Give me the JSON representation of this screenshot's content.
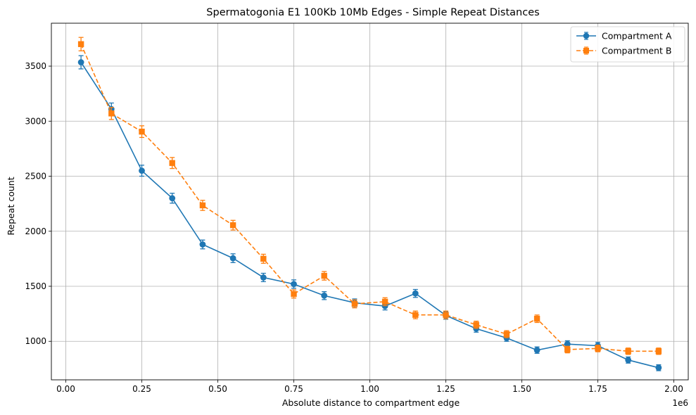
{
  "chart_data": {
    "type": "line",
    "title": "Spermatogonia E1 100Kb 10Mb Edges - Simple Repeat Distances",
    "xlabel": "Absolute distance to compartment edge",
    "ylabel": "Repeat count",
    "x_offset_label": "1e6",
    "xlim": [
      -0.0475,
      2.0475
    ],
    "ylim": [
      650,
      3890
    ],
    "x_ticks": [
      0.0,
      0.25,
      0.5,
      0.75,
      1.0,
      1.25,
      1.5,
      1.75,
      2.0
    ],
    "x_tick_labels": [
      "0.00",
      "0.25",
      "0.50",
      "0.75",
      "1.00",
      "1.25",
      "1.50",
      "1.75",
      "2.00"
    ],
    "y_ticks": [
      1000,
      1500,
      2000,
      2500,
      3000,
      3500
    ],
    "y_tick_labels": [
      "1000",
      "1500",
      "2000",
      "2500",
      "3000",
      "3500"
    ],
    "grid": true,
    "legend_position": "top-right",
    "x": [
      0.05,
      0.15,
      0.25,
      0.35,
      0.45,
      0.55,
      0.65,
      0.75,
      0.85,
      0.95,
      1.05,
      1.15,
      1.25,
      1.35,
      1.45,
      1.55,
      1.65,
      1.75,
      1.85,
      1.95
    ],
    "series": [
      {
        "name": "Compartment A",
        "color": "#1f77b4",
        "line_style": "solid",
        "marker": "circle",
        "values": [
          3535,
          3110,
          2550,
          2300,
          1880,
          1755,
          1580,
          1520,
          1415,
          1350,
          1320,
          1435,
          1235,
          1115,
          1030,
          920,
          975,
          960,
          830,
          760
        ],
        "errors": [
          60,
          55,
          50,
          45,
          40,
          40,
          38,
          38,
          36,
          35,
          35,
          36,
          34,
          32,
          30,
          29,
          30,
          30,
          28,
          27
        ]
      },
      {
        "name": "Compartment B",
        "color": "#ff7f0e",
        "line_style": "dashed",
        "marker": "square",
        "values": [
          3700,
          3070,
          2905,
          2620,
          2235,
          2055,
          1750,
          1430,
          1595,
          1340,
          1360,
          1240,
          1240,
          1150,
          1065,
          1205,
          925,
          935,
          910,
          910
        ],
        "errors": [
          61,
          55,
          53,
          50,
          46,
          44,
          41,
          37,
          39,
          36,
          36,
          35,
          35,
          33,
          32,
          34,
          30,
          30,
          29,
          29
        ]
      }
    ]
  }
}
